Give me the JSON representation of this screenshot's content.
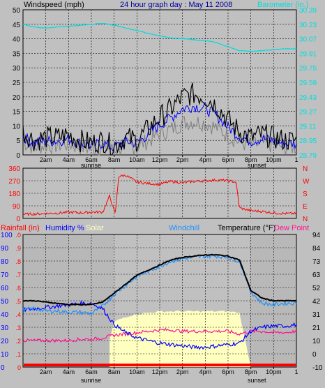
{
  "header": {
    "windspeed_label": "Windspeed (mph)",
    "title": "24 hour graph day : May 11 2008",
    "barometer_label": "Barometer (in.)"
  },
  "legend": {
    "rainfall": "Rainfall (in)",
    "humidity": "Humidity %",
    "solar": "Solar",
    "windchill": "Windchill",
    "temperature": "Temperature (°F)",
    "dewpoint": "Dew Point"
  },
  "time_labels": [
    "2am",
    "4am",
    "6am",
    "8am",
    "10am",
    "12pm",
    "2pm",
    "4pm",
    "6pm",
    "8pm",
    "10pm"
  ],
  "sunrise_label": "sunrise",
  "sunset_label": "sunset",
  "end_tick_label": "1",
  "direction_labels": [
    "N",
    "W",
    "S",
    "E",
    "N"
  ],
  "colors": {
    "background": "#c0c0c0",
    "windspeed": "#000000",
    "wind_avg": "#0000ff",
    "wind_gray": "#808080",
    "barometer": "#00dddd",
    "direction": "#ff0000",
    "temperature": "#000000",
    "windchill": "#1e90ff",
    "humidity": "#0000ff",
    "dewpoint": "#ff1493",
    "solar": "#ffffc0",
    "rainfall": "#ff0000"
  },
  "chart_data": [
    {
      "type": "line",
      "name": "wind",
      "ylabel": "Windspeed (mph)",
      "y2label": "Barometer (in.)",
      "left_ticks": [
        "50",
        "45",
        "40",
        "35",
        "30",
        "25",
        "20",
        "15",
        "10",
        "5",
        "0"
      ],
      "right_ticks": [
        "30.39",
        "30.23",
        "30.07",
        "29.91",
        "29.75",
        "29.59",
        "29.43",
        "29.27",
        "29.11",
        "28.95",
        "28.79"
      ],
      "ylim": [
        0,
        50
      ],
      "y2lim": [
        28.79,
        30.39
      ],
      "x_hours": [
        0,
        1,
        2,
        3,
        4,
        5,
        6,
        7,
        8,
        9,
        10,
        11,
        12,
        13,
        14,
        15,
        16,
        17,
        18,
        19,
        20,
        21,
        22,
        23,
        24
      ],
      "series": [
        {
          "name": "Windspeed (mph)",
          "values": [
            8,
            5,
            6,
            6,
            7,
            5,
            4,
            5,
            3,
            6,
            5,
            9,
            13,
            16,
            20,
            21,
            20,
            17,
            12,
            8,
            6,
            7,
            6,
            5,
            5
          ]
        },
        {
          "name": "Barometer (in.)",
          "values": [
            30.23,
            30.2,
            30.19,
            30.2,
            30.21,
            30.22,
            30.23,
            30.24,
            30.22,
            30.19,
            30.16,
            30.13,
            30.1,
            30.08,
            30.07,
            30.06,
            30.05,
            30.03,
            29.98,
            29.94,
            29.93,
            29.94,
            29.95,
            29.96,
            29.96
          ]
        }
      ]
    },
    {
      "type": "line",
      "name": "wind direction",
      "left_ticks": [
        "360",
        "270",
        "180",
        "90",
        "0"
      ],
      "ylim": [
        0,
        360
      ],
      "x_hours": [
        0,
        1,
        2,
        3,
        4,
        5,
        6,
        7,
        7.6,
        8.1,
        8.4,
        9,
        10,
        11,
        12,
        13,
        14,
        15,
        16,
        17,
        18,
        18.7,
        19,
        20,
        21,
        22,
        23,
        24
      ],
      "series": [
        {
          "name": "Wind direction",
          "values": [
            30,
            32,
            35,
            38,
            45,
            40,
            45,
            45,
            160,
            30,
            300,
            310,
            260,
            250,
            245,
            265,
            255,
            265,
            270,
            275,
            270,
            260,
            75,
            55,
            50,
            40,
            35,
            35
          ]
        }
      ]
    },
    {
      "type": "line",
      "name": "temperature humidity",
      "left_ticks": [
        "100",
        "90",
        "80",
        "70",
        "60",
        "50",
        "40",
        "30",
        "20",
        "10",
        "0"
      ],
      "left2_ticks": [
        ".0",
        ".9",
        ".8",
        ".7",
        ".6",
        ".5",
        ".4",
        ".3",
        ".2",
        ".1",
        "0"
      ],
      "right_ticks": [
        "94",
        "84",
        "73",
        "63",
        "52",
        "42",
        "31",
        "21",
        "10",
        "0",
        "-10"
      ],
      "ylim": [
        0,
        100
      ],
      "y2lim": [
        -10,
        94
      ],
      "rain_lim": [
        0,
        1.0
      ],
      "x_hours": [
        0,
        1,
        2,
        3,
        4,
        5,
        6,
        7,
        8,
        9,
        10,
        11,
        12,
        13,
        14,
        15,
        16,
        17,
        18,
        19,
        20,
        21,
        22,
        23,
        24
      ],
      "series": [
        {
          "name": "Temperature (°F)",
          "values": [
            42,
            42,
            41,
            40,
            39,
            39,
            39,
            41,
            48,
            55,
            62,
            66,
            70,
            74,
            76,
            77,
            78,
            78,
            77,
            74,
            50,
            44,
            42,
            42,
            42
          ]
        },
        {
          "name": "Windchill",
          "values": [
            35,
            36,
            34,
            34,
            33,
            33,
            32,
            38,
            47,
            54,
            61,
            65,
            69,
            73,
            75,
            76,
            77,
            77,
            76,
            73,
            49,
            40,
            39,
            40,
            40
          ]
        },
        {
          "name": "Humidity %",
          "values": [
            43,
            44,
            45,
            46,
            47,
            48,
            48,
            44,
            32,
            26,
            22,
            20,
            18,
            17,
            16,
            15,
            15,
            16,
            17,
            18,
            27,
            30,
            31,
            31,
            32
          ]
        },
        {
          "name": "Dew Point",
          "values": [
            20,
            20,
            20,
            20,
            20,
            21,
            21,
            22,
            24,
            25,
            26,
            27,
            28,
            28,
            27,
            27,
            27,
            27,
            27,
            25,
            27,
            27,
            26,
            26,
            27
          ]
        },
        {
          "name": "Solar",
          "values": [
            0,
            0,
            0,
            0,
            0,
            0,
            0,
            0,
            34,
            38,
            40,
            41,
            42,
            42,
            42,
            42,
            42,
            42,
            42,
            41,
            0,
            0,
            0,
            0,
            0
          ]
        },
        {
          "name": "Rainfall (in)",
          "values": [
            0,
            0,
            0,
            0,
            0,
            0,
            0,
            0,
            0,
            0,
            0,
            0,
            0,
            0,
            0,
            0,
            0,
            0,
            0,
            0,
            0,
            0,
            0,
            0,
            0
          ]
        }
      ]
    }
  ]
}
